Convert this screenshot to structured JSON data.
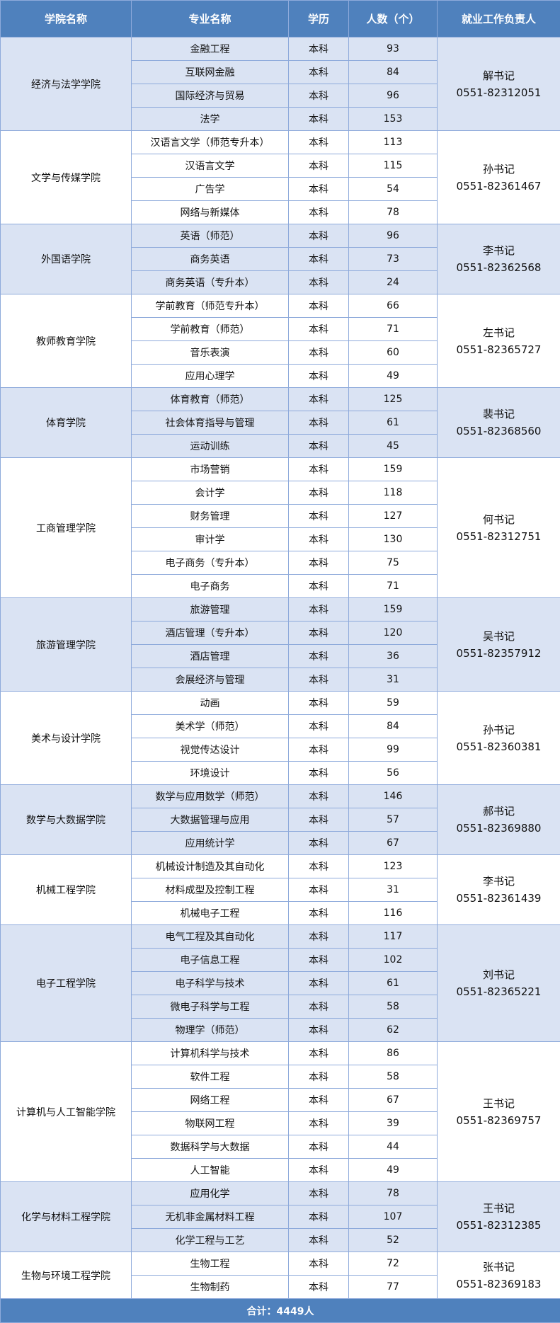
{
  "header": {
    "college": "学院名称",
    "major": "专业名称",
    "degree": "学历",
    "count": "人数（个）",
    "contact": "就业工作负责人"
  },
  "colors": {
    "header_bg": "#4f81bd",
    "band_bg": "#dae3f3",
    "border": "#8eaadb"
  },
  "colleges": [
    {
      "name": "经济与法学学院",
      "person": "解书记",
      "phone": "0551-82312051",
      "majors": [
        [
          "金融工程",
          "本科",
          "93"
        ],
        [
          "互联网金融",
          "本科",
          "84"
        ],
        [
          "国际经济与贸易",
          "本科",
          "96"
        ],
        [
          "法学",
          "本科",
          "153"
        ]
      ]
    },
    {
      "name": "文学与传媒学院",
      "person": "孙书记",
      "phone": "0551-82361467",
      "majors": [
        [
          "汉语言文学（师范专升本）",
          "本科",
          "113"
        ],
        [
          "汉语言文学",
          "本科",
          "115"
        ],
        [
          "广告学",
          "本科",
          "54"
        ],
        [
          "网络与新媒体",
          "本科",
          "78"
        ]
      ]
    },
    {
      "name": "外国语学院",
      "person": "李书记",
      "phone": "0551-82362568",
      "majors": [
        [
          "英语（师范）",
          "本科",
          "96"
        ],
        [
          "商务英语",
          "本科",
          "73"
        ],
        [
          "商务英语（专升本）",
          "本科",
          "24"
        ]
      ]
    },
    {
      "name": "教师教育学院",
      "person": "左书记",
      "phone": "0551-82365727",
      "majors": [
        [
          "学前教育（师范专升本）",
          "本科",
          "66"
        ],
        [
          "学前教育（师范）",
          "本科",
          "71"
        ],
        [
          "音乐表演",
          "本科",
          "60"
        ],
        [
          "应用心理学",
          "本科",
          "49"
        ]
      ]
    },
    {
      "name": "体育学院",
      "person": "裴书记",
      "phone": "0551-82368560",
      "majors": [
        [
          "体育教育（师范）",
          "本科",
          "125"
        ],
        [
          "社会体育指导与管理",
          "本科",
          "61"
        ],
        [
          "运动训练",
          "本科",
          "45"
        ]
      ]
    },
    {
      "name": "工商管理学院",
      "person": "何书记",
      "phone": "0551-82312751",
      "majors": [
        [
          "市场营销",
          "本科",
          "159"
        ],
        [
          "会计学",
          "本科",
          "118"
        ],
        [
          "财务管理",
          "本科",
          "127"
        ],
        [
          "审计学",
          "本科",
          "130"
        ],
        [
          "电子商务（专升本）",
          "本科",
          "75"
        ],
        [
          "电子商务",
          "本科",
          "71"
        ]
      ]
    },
    {
      "name": "旅游管理学院",
      "person": "吴书记",
      "phone": "0551-82357912",
      "majors": [
        [
          "旅游管理",
          "本科",
          "159"
        ],
        [
          "酒店管理（专升本）",
          "本科",
          "120"
        ],
        [
          "酒店管理",
          "本科",
          "36"
        ],
        [
          "会展经济与管理",
          "本科",
          "31"
        ]
      ]
    },
    {
      "name": "美术与设计学院",
      "person": "孙书记",
      "phone": "0551-82360381",
      "majors": [
        [
          "动画",
          "本科",
          "59"
        ],
        [
          "美术学（师范）",
          "本科",
          "84"
        ],
        [
          "视觉传达设计",
          "本科",
          "99"
        ],
        [
          "环境设计",
          "本科",
          "56"
        ]
      ]
    },
    {
      "name": "数学与大数据学院",
      "person": "郝书记",
      "phone": "0551-82369880",
      "majors": [
        [
          "数学与应用数学（师范）",
          "本科",
          "146"
        ],
        [
          "大数据管理与应用",
          "本科",
          "57"
        ],
        [
          "应用统计学",
          "本科",
          "67"
        ]
      ]
    },
    {
      "name": "机械工程学院",
      "person": "李书记",
      "phone": "0551-82361439",
      "majors": [
        [
          "机械设计制造及其自动化",
          "本科",
          "123"
        ],
        [
          "材料成型及控制工程",
          "本科",
          "31"
        ],
        [
          "机械电子工程",
          "本科",
          "116"
        ]
      ]
    },
    {
      "name": "电子工程学院",
      "person": "刘书记",
      "phone": "0551-82365221",
      "majors": [
        [
          "电气工程及其自动化",
          "本科",
          "117"
        ],
        [
          "电子信息工程",
          "本科",
          "102"
        ],
        [
          "电子科学与技术",
          "本科",
          "61"
        ],
        [
          "微电子科学与工程",
          "本科",
          "58"
        ],
        [
          "物理学（师范）",
          "本科",
          "62"
        ]
      ]
    },
    {
      "name": "计算机与人工智能学院",
      "person": "王书记",
      "phone": "0551-82369757",
      "majors": [
        [
          "计算机科学与技术",
          "本科",
          "86"
        ],
        [
          "软件工程",
          "本科",
          "58"
        ],
        [
          "网络工程",
          "本科",
          "67"
        ],
        [
          "物联网工程",
          "本科",
          "39"
        ],
        [
          "数据科学与大数据",
          "本科",
          "44"
        ],
        [
          "人工智能",
          "本科",
          "49"
        ]
      ]
    },
    {
      "name": "化学与材料工程学院",
      "person": "王书记",
      "phone": "0551-82312385",
      "majors": [
        [
          "应用化学",
          "本科",
          "78"
        ],
        [
          "无机非金属材料工程",
          "本科",
          "107"
        ],
        [
          "化学工程与工艺",
          "本科",
          "52"
        ]
      ]
    },
    {
      "name": "生物与环境工程学院",
      "person": "张书记",
      "phone": "0551-82369183",
      "majors": [
        [
          "生物工程",
          "本科",
          "72"
        ],
        [
          "生物制药",
          "本科",
          "77"
        ]
      ]
    }
  ],
  "footer": {
    "total": "合计：4449人"
  }
}
